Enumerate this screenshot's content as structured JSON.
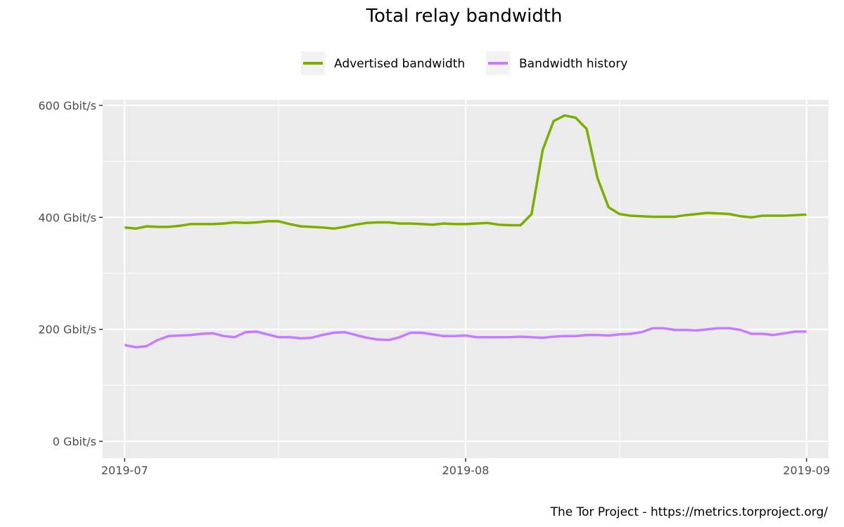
{
  "chart_data": {
    "type": "line",
    "title": "Total relay bandwidth",
    "caption": "The Tor Project - https://metrics.torproject.org/",
    "xlabel": "",
    "ylabel": "",
    "x_ticks": [
      "2019-07",
      "2019-08",
      "2019-09"
    ],
    "y_ticks": [
      "0 Gbit/s",
      "200 Gbit/s",
      "400 Gbit/s",
      "600 Gbit/s"
    ],
    "ylim": [
      -30,
      610
    ],
    "xlim": [
      "2019-06-29",
      "2019-09-03"
    ],
    "grid": true,
    "legend_position": "top",
    "x": [
      "2019-07-01",
      "2019-07-02",
      "2019-07-03",
      "2019-07-04",
      "2019-07-05",
      "2019-07-06",
      "2019-07-07",
      "2019-07-08",
      "2019-07-09",
      "2019-07-10",
      "2019-07-11",
      "2019-07-12",
      "2019-07-13",
      "2019-07-14",
      "2019-07-15",
      "2019-07-16",
      "2019-07-17",
      "2019-07-18",
      "2019-07-19",
      "2019-07-20",
      "2019-07-21",
      "2019-07-22",
      "2019-07-23",
      "2019-07-24",
      "2019-07-25",
      "2019-07-26",
      "2019-07-27",
      "2019-07-28",
      "2019-07-29",
      "2019-07-30",
      "2019-07-31",
      "2019-08-01",
      "2019-08-02",
      "2019-08-03",
      "2019-08-04",
      "2019-08-05",
      "2019-08-06",
      "2019-08-07",
      "2019-08-08",
      "2019-08-09",
      "2019-08-10",
      "2019-08-11",
      "2019-08-12",
      "2019-08-13",
      "2019-08-14",
      "2019-08-15",
      "2019-08-16",
      "2019-08-17",
      "2019-08-18",
      "2019-08-19",
      "2019-08-20",
      "2019-08-21",
      "2019-08-22",
      "2019-08-23",
      "2019-08-24",
      "2019-08-25",
      "2019-08-26",
      "2019-08-27",
      "2019-08-28",
      "2019-08-29",
      "2019-08-30",
      "2019-08-31",
      "2019-09-01"
    ],
    "series": [
      {
        "name": "Advertised bandwidth",
        "color": "#7cae00",
        "values": [
          382,
          380,
          384,
          383,
          383,
          385,
          388,
          388,
          388,
          389,
          391,
          390,
          391,
          393,
          393,
          388,
          384,
          383,
          382,
          380,
          383,
          387,
          390,
          391,
          391,
          389,
          389,
          388,
          387,
          389,
          388,
          388,
          389,
          390,
          387,
          386,
          386,
          406,
          520,
          572,
          582,
          578,
          558,
          470,
          418,
          406,
          403,
          402,
          401,
          401,
          401,
          404,
          406,
          408,
          407,
          406,
          402,
          400,
          403,
          403,
          403,
          404,
          405
        ]
      },
      {
        "name": "Bandwidth history",
        "color": "#c77cff",
        "values": [
          172,
          168,
          170,
          181,
          188,
          189,
          190,
          192,
          193,
          188,
          186,
          195,
          196,
          191,
          186,
          186,
          184,
          185,
          190,
          194,
          195,
          190,
          185,
          182,
          181,
          186,
          194,
          194,
          191,
          188,
          188,
          189,
          186,
          186,
          186,
          186,
          187,
          186,
          185,
          187,
          188,
          188,
          190,
          190,
          189,
          191,
          192,
          195,
          202,
          202,
          199,
          199,
          198,
          200,
          202,
          202,
          199,
          192,
          192,
          190,
          193,
          196,
          196
        ]
      }
    ]
  }
}
